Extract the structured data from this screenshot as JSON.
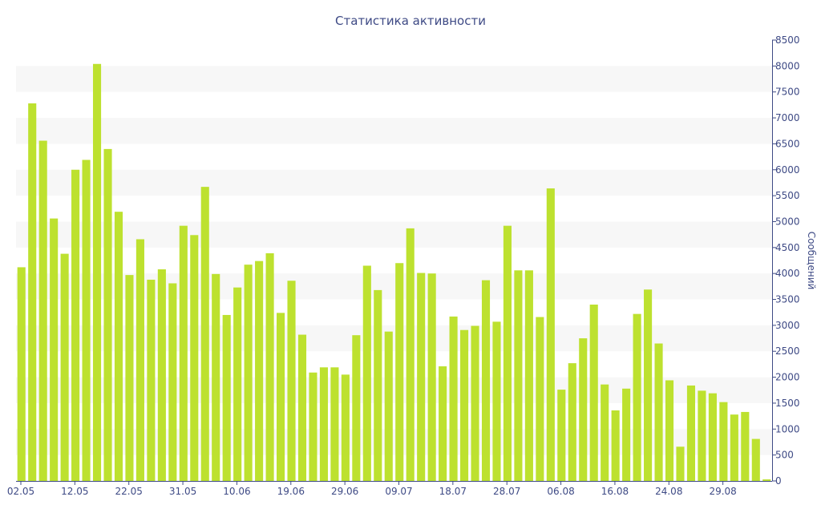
{
  "chart_data": {
    "type": "bar",
    "title": "Статистика активности",
    "ylabel": "Сообщений",
    "xlabel": "",
    "ylim": [
      0,
      8500
    ],
    "yticks": [
      0,
      500,
      1000,
      1500,
      2000,
      2500,
      3000,
      3500,
      4000,
      4500,
      5000,
      5500,
      6000,
      6500,
      7000,
      7500,
      8000,
      8500
    ],
    "y_axis_position": "right",
    "grid": "alternating horizontal bands",
    "colors": {
      "bar": "#bde12f",
      "text": "#3e4a85",
      "band": "#f7f7f7",
      "axis": "#3e4a85"
    },
    "x_tick_labels": [
      {
        "label": "02.05",
        "index": 0
      },
      {
        "label": "12.05",
        "index": 5
      },
      {
        "label": "22.05",
        "index": 10
      },
      {
        "label": "31.05",
        "index": 15
      },
      {
        "label": "10.06",
        "index": 20
      },
      {
        "label": "19.06",
        "index": 25
      },
      {
        "label": "29.06",
        "index": 30
      },
      {
        "label": "09.07",
        "index": 35
      },
      {
        "label": "18.07",
        "index": 40
      },
      {
        "label": "28.07",
        "index": 45
      },
      {
        "label": "06.08",
        "index": 50
      },
      {
        "label": "16.08",
        "index": 55
      },
      {
        "label": "24.08",
        "index": 60
      },
      {
        "label": "29.08",
        "index": 65
      }
    ],
    "values": [
      4120,
      7280,
      6560,
      5060,
      4380,
      6000,
      6190,
      8040,
      6400,
      5190,
      3970,
      4660,
      3880,
      4080,
      3810,
      4920,
      4740,
      5670,
      3990,
      3200,
      3730,
      4170,
      4240,
      4390,
      3240,
      3860,
      2820,
      2090,
      2190,
      2190,
      2050,
      2810,
      4150,
      3680,
      2880,
      4200,
      4870,
      4010,
      4000,
      2210,
      3170,
      2910,
      2990,
      3870,
      3070,
      4920,
      4060,
      4060,
      3160,
      5640,
      1760,
      2270,
      2750,
      3400,
      1860,
      1360,
      1780,
      3220,
      3690,
      2650,
      1940,
      660,
      1840,
      1740,
      1690,
      1520,
      1280,
      1330,
      810,
      30
    ]
  }
}
